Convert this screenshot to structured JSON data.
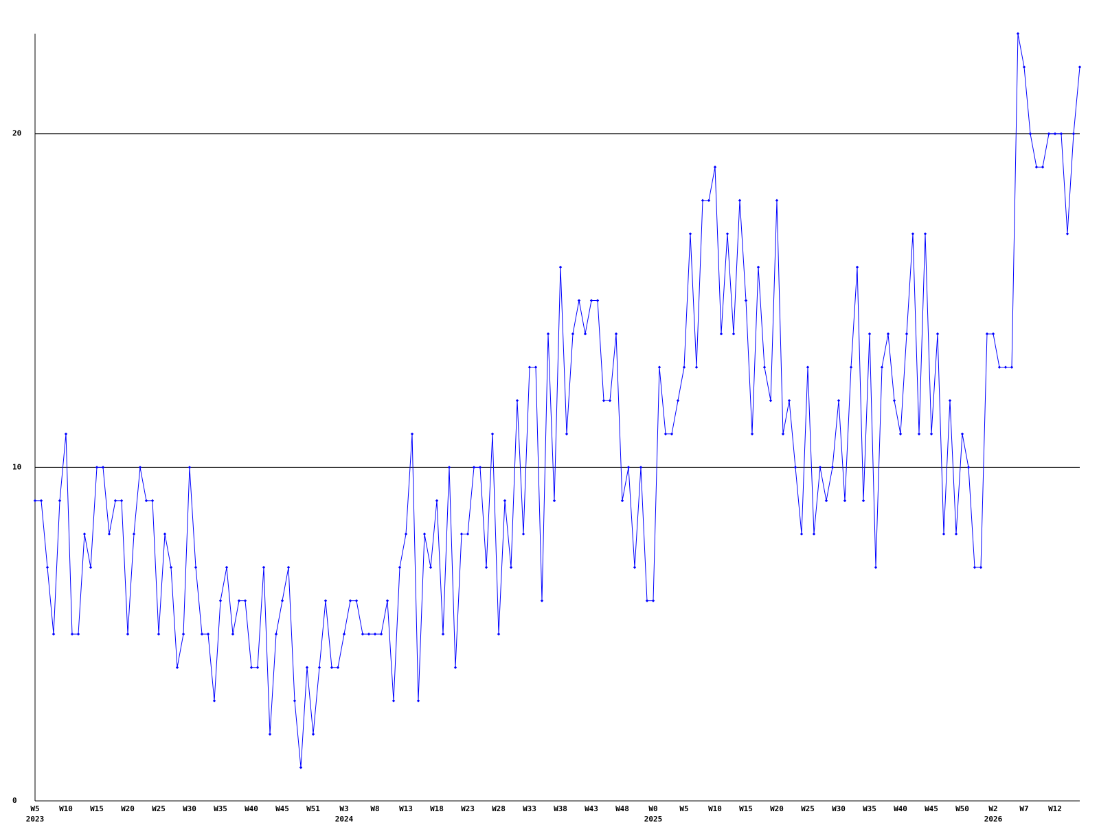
{
  "chart_data": {
    "type": "line",
    "categories": [
      "W5",
      null,
      null,
      null,
      null,
      "W10",
      null,
      null,
      null,
      null,
      "W15",
      null,
      null,
      null,
      null,
      "W20",
      null,
      null,
      null,
      null,
      "W25",
      null,
      null,
      null,
      null,
      "W30",
      null,
      null,
      null,
      null,
      "W35",
      null,
      null,
      null,
      null,
      "W40",
      null,
      null,
      null,
      null,
      "W45",
      null,
      null,
      null,
      null,
      "W51",
      null,
      null,
      null,
      null,
      "W3",
      null,
      null,
      null,
      null,
      "W8",
      null,
      null,
      null,
      null,
      "W13",
      null,
      null,
      null,
      null,
      "W18",
      null,
      null,
      null,
      null,
      "W23",
      null,
      null,
      null,
      null,
      "W28",
      null,
      null,
      null,
      null,
      "W33",
      null,
      null,
      null,
      null,
      "W38",
      null,
      null,
      null,
      null,
      "W43",
      null,
      null,
      null,
      null,
      "W48",
      null,
      null,
      null,
      null,
      "W0",
      null,
      null,
      null,
      null,
      "W5",
      null,
      null,
      null,
      null,
      "W10",
      null,
      null,
      null,
      null,
      "W15",
      null,
      null,
      null,
      null,
      "W20",
      null,
      null,
      null,
      null,
      "W25",
      null,
      null,
      null,
      null,
      "W30",
      null,
      null,
      null,
      null,
      "W35",
      null,
      null,
      null,
      null,
      "W40",
      null,
      null,
      null,
      null,
      "W45",
      null,
      null,
      null,
      null,
      "W50",
      null,
      null,
      null,
      null,
      "W2",
      null,
      null,
      null,
      null,
      "W7",
      null,
      null,
      null,
      null,
      "W12",
      null,
      null,
      null,
      null
    ],
    "category_years": [
      "2023",
      null,
      null,
      null,
      null,
      null,
      null,
      null,
      null,
      null,
      null,
      null,
      null,
      null,
      null,
      null,
      null,
      null,
      null,
      null,
      null,
      null,
      null,
      null,
      null,
      null,
      null,
      null,
      null,
      null,
      null,
      null,
      null,
      null,
      null,
      null,
      null,
      null,
      null,
      null,
      null,
      null,
      null,
      null,
      null,
      null,
      null,
      null,
      null,
      null,
      "2024",
      null,
      null,
      null,
      null,
      null,
      null,
      null,
      null,
      null,
      null,
      null,
      null,
      null,
      null,
      null,
      null,
      null,
      null,
      null,
      null,
      null,
      null,
      null,
      null,
      null,
      null,
      null,
      null,
      null,
      null,
      null,
      null,
      null,
      null,
      null,
      null,
      null,
      null,
      null,
      null,
      null,
      null,
      null,
      null,
      null,
      null,
      null,
      null,
      null,
      "2025",
      null,
      null,
      null,
      null,
      null,
      null,
      null,
      null,
      null,
      null,
      null,
      null,
      null,
      null,
      null,
      null,
      null,
      null,
      null,
      null,
      null,
      null,
      null,
      null,
      null,
      null,
      null,
      null,
      null,
      null,
      null,
      null,
      null,
      null,
      null,
      null,
      null,
      null,
      null,
      null,
      null,
      null,
      null,
      null,
      null,
      null,
      null,
      null,
      null,
      null,
      null,
      null,
      null,
      null,
      "2026",
      null,
      null,
      null,
      null,
      null,
      null,
      null,
      null,
      null,
      null,
      null,
      null,
      null,
      null
    ],
    "series": [
      {
        "color": "#0000ff",
        "values": [
          9,
          9,
          7,
          5,
          9,
          11,
          5,
          5,
          8,
          7,
          10,
          10,
          8,
          9,
          9,
          5,
          8,
          10,
          9,
          9,
          5,
          8,
          7,
          4,
          5,
          10,
          7,
          5,
          5,
          3,
          6,
          7,
          5,
          6,
          6,
          4,
          4,
          7,
          2,
          5,
          6,
          7,
          3,
          1,
          4,
          2,
          4,
          6,
          4,
          4,
          5,
          6,
          6,
          5,
          5,
          5,
          5,
          6,
          3,
          7,
          8,
          11,
          3,
          8,
          7,
          9,
          5,
          10,
          4,
          8,
          8,
          10,
          10,
          7,
          11,
          5,
          9,
          7,
          12,
          8,
          13,
          13,
          6,
          14,
          9,
          16,
          11,
          14,
          15,
          14,
          15,
          15,
          12,
          12,
          14,
          9,
          10,
          7,
          10,
          6,
          6,
          13,
          11,
          11,
          12,
          13,
          17,
          13,
          18,
          18,
          19,
          14,
          17,
          14,
          18,
          15,
          11,
          16,
          13,
          12,
          18,
          11,
          12,
          10,
          8,
          13,
          8,
          10,
          9,
          10,
          12,
          9,
          13,
          16,
          9,
          14,
          7,
          13,
          14,
          12,
          11,
          14,
          17,
          11,
          17,
          11,
          14,
          8,
          12,
          8,
          11,
          10,
          7,
          7,
          14,
          14,
          13,
          13,
          13,
          23,
          22,
          20,
          19,
          19,
          20,
          20,
          20,
          17,
          20,
          22
        ]
      }
    ],
    "ylim": [
      0,
      23
    ],
    "yticks": [
      0,
      10,
      20
    ],
    "grid": true
  }
}
